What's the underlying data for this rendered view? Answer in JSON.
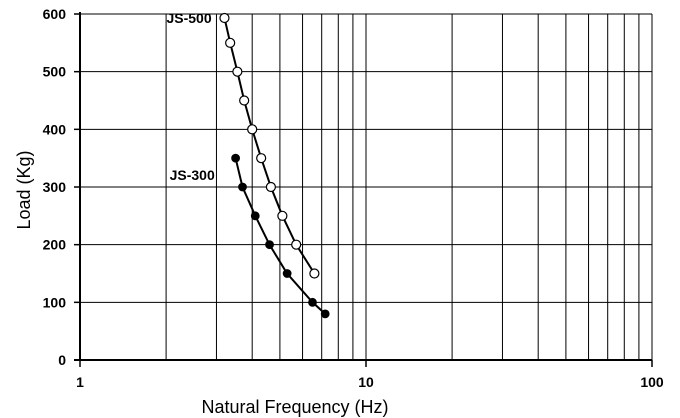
{
  "chart_data": {
    "type": "line",
    "title": "",
    "xlabel": "Natural Frequency (Hz)",
    "ylabel": "Load (Kg)",
    "x_scale": "log",
    "xlim": [
      1,
      100
    ],
    "ylim": [
      0,
      600
    ],
    "x_tick_labels": [
      "1",
      "10",
      "100"
    ],
    "y_tick_labels": [
      "0",
      "100",
      "200",
      "300",
      "400",
      "500",
      "600"
    ],
    "grid": true,
    "legend": "none",
    "series": [
      {
        "name": "JS-500",
        "marker": "open-circle",
        "x": [
          3.2,
          3.35,
          3.55,
          3.75,
          4.0,
          4.3,
          4.65,
          5.1,
          5.7,
          6.6
        ],
        "y": [
          593,
          550,
          500,
          450,
          400,
          350,
          300,
          250,
          200,
          150
        ]
      },
      {
        "name": "JS-300",
        "marker": "filled-circle",
        "x": [
          3.5,
          3.7,
          4.1,
          4.6,
          5.3,
          6.5,
          7.2
        ],
        "y": [
          350,
          300,
          250,
          200,
          150,
          100,
          80
        ]
      }
    ]
  }
}
